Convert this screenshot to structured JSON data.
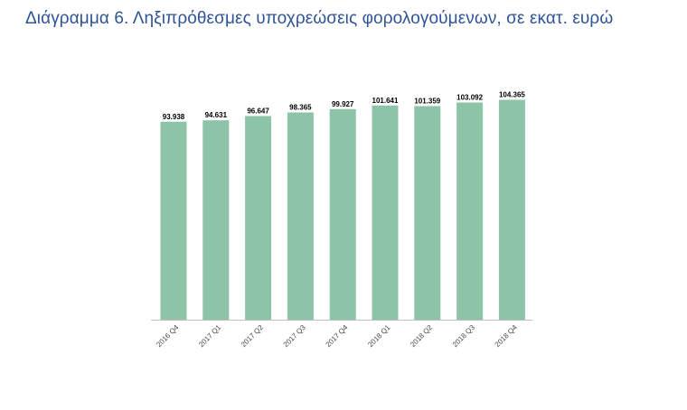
{
  "chart_data": {
    "type": "bar",
    "title": "Διάγραμμα 6. Ληξιπρόθεσμες υποχρεώσεις φορολογούμενων, σε εκατ. ευρώ",
    "categories": [
      "2016 Q4",
      "2017 Q1",
      "2017 Q2",
      "2017 Q3",
      "2017 Q4",
      "2018 Q1",
      "2018 Q2",
      "2018 Q3",
      "2018 Q4"
    ],
    "values": [
      93938,
      94631,
      96647,
      98365,
      99927,
      101641,
      101359,
      103092,
      104365
    ],
    "value_labels": [
      "93.938",
      "94.631",
      "96.647",
      "98.365",
      "99.927",
      "101.641",
      "101.359",
      "103.092",
      "104.365"
    ],
    "xlabel": "",
    "ylabel": "",
    "ylim": [
      0,
      105000
    ],
    "grid": false,
    "legend": "none",
    "bar_color": "#8dc3a7",
    "axis_color": "#bfbfbf"
  }
}
